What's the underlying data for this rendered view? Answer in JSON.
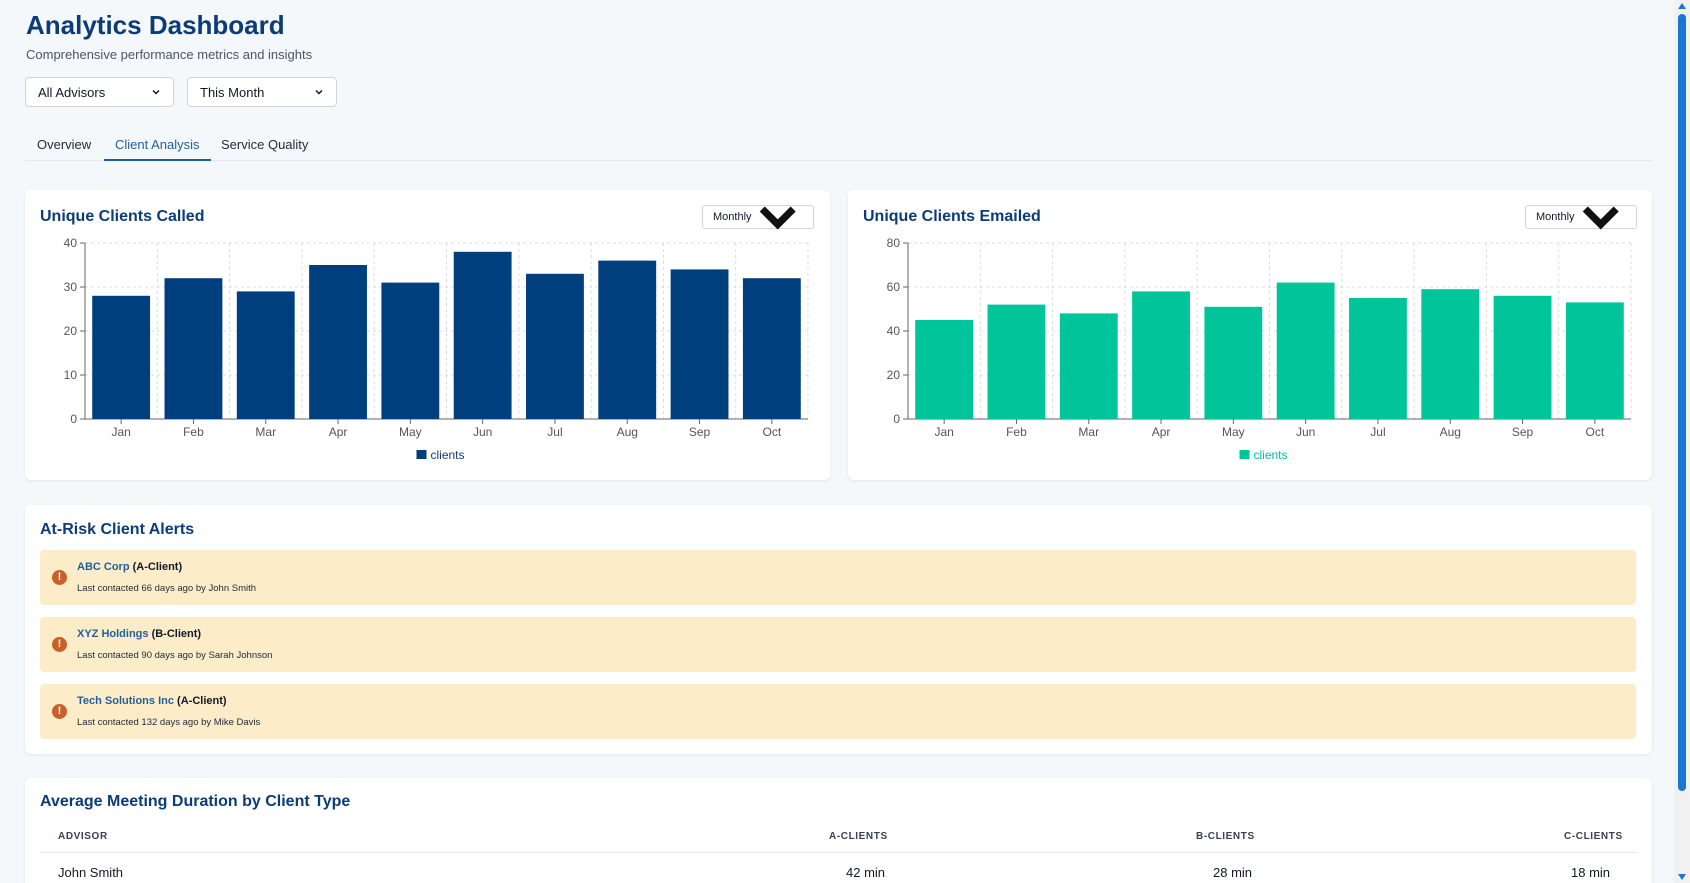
{
  "header": {
    "title": "Analytics Dashboard",
    "subtitle": "Comprehensive performance metrics and insights"
  },
  "filters": {
    "advisor": "All Advisors",
    "period": "This Month"
  },
  "tabs": [
    {
      "label": "Overview",
      "active": false
    },
    {
      "label": "Client Analysis",
      "active": true
    },
    {
      "label": "Service Quality",
      "active": false
    }
  ],
  "charts": {
    "called_title": "Unique Clients Called",
    "called_interval": "Monthly",
    "emailed_title": "Unique Clients Emailed",
    "emailed_interval": "Monthly"
  },
  "chart_data": [
    {
      "type": "bar",
      "title": "Unique Clients Called",
      "categories": [
        "Jan",
        "Feb",
        "Mar",
        "Apr",
        "May",
        "Jun",
        "Jul",
        "Aug",
        "Sep",
        "Oct"
      ],
      "series": [
        {
          "name": "clients",
          "values": [
            28,
            32,
            29,
            35,
            31,
            38,
            33,
            36,
            34,
            32
          ],
          "color": "#003f7d"
        }
      ],
      "ylim": [
        0,
        40
      ],
      "yticks": [
        0,
        10,
        20,
        30,
        40
      ],
      "grid": true,
      "legend": "bottom"
    },
    {
      "type": "bar",
      "title": "Unique Clients Emailed",
      "categories": [
        "Jan",
        "Feb",
        "Mar",
        "Apr",
        "May",
        "Jun",
        "Jul",
        "Aug",
        "Sep",
        "Oct"
      ],
      "series": [
        {
          "name": "clients",
          "values": [
            45,
            52,
            48,
            58,
            51,
            62,
            55,
            59,
            56,
            53
          ],
          "color": "#00c49a"
        }
      ],
      "ylim": [
        0,
        80
      ],
      "yticks": [
        0,
        20,
        40,
        60,
        80
      ],
      "grid": true,
      "legend": "bottom"
    }
  ],
  "alerts": {
    "title": "At-Risk Client Alerts",
    "items": [
      {
        "name": "ABC Corp",
        "tier": "(A-Client)",
        "meta": "Last contacted 66 days ago by John Smith"
      },
      {
        "name": "XYZ Holdings",
        "tier": "(B-Client)",
        "meta": "Last contacted 90 days ago by Sarah Johnson"
      },
      {
        "name": "Tech Solutions Inc",
        "tier": "(A-Client)",
        "meta": "Last contacted 132 days ago by Mike Davis"
      }
    ]
  },
  "duration": {
    "title": "Average Meeting Duration by Client Type",
    "columns": [
      "ADVISOR",
      "A-CLIENTS",
      "B-CLIENTS",
      "C-CLIENTS"
    ],
    "rows": [
      {
        "advisor": "John Smith",
        "a": "42 min",
        "b": "28 min",
        "c": "18 min"
      }
    ]
  },
  "icons": {
    "alert": "exclamation-icon",
    "dropdown": "chevron-down-icon"
  },
  "colors": {
    "brand": "#0b3c78",
    "called_bar": "#003f7d",
    "emailed_bar": "#00c49a",
    "alert_bg": "#fdecc8",
    "alert_icon": "#c9602a"
  }
}
